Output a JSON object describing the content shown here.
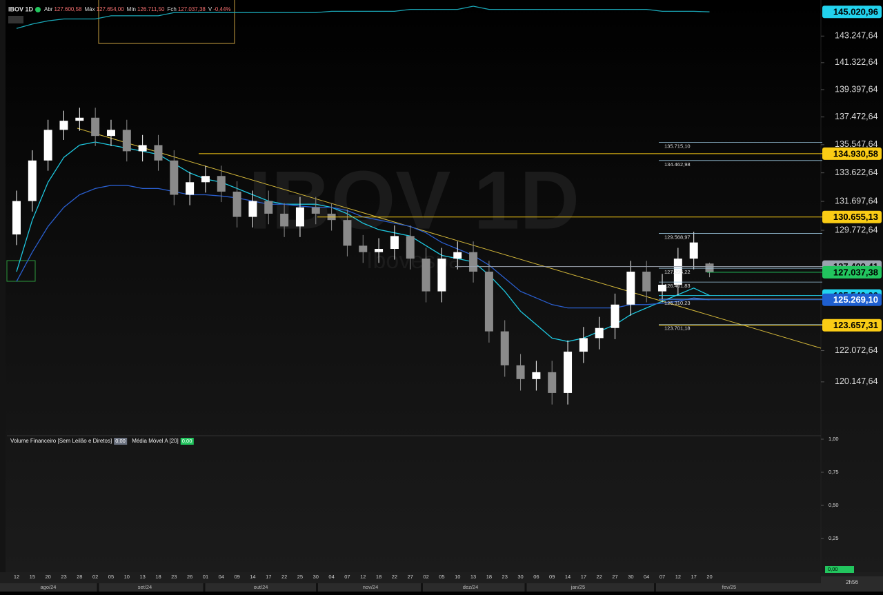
{
  "header": {
    "symbol": "IBOV 1D",
    "fields": [
      {
        "label": "Abr",
        "value": "127.600,58"
      },
      {
        "label": "Máx",
        "value": "127.654,00"
      },
      {
        "label": "Mín",
        "value": "126.711,50"
      },
      {
        "label": "Fch",
        "value": "127.037,38"
      },
      {
        "label": "V",
        "value": "-0,44%"
      }
    ]
  },
  "watermark": {
    "title": "IBOV 1D",
    "subtitle": "Ibovespa"
  },
  "clock": "2h56",
  "chart_data": [
    {
      "type": "candlestick",
      "log_scale": true,
      "ylim": [
        116983,
        145898
      ],
      "categories": [
        "12",
        "15",
        "20",
        "23",
        "28",
        "02",
        "05",
        "10",
        "13",
        "18",
        "23",
        "26",
        "01",
        "04",
        "09",
        "14",
        "17",
        "22",
        "25",
        "30",
        "04",
        "07",
        "12",
        "18",
        "22",
        "27",
        "02",
        "05",
        "10",
        "13",
        "18",
        "23",
        "30",
        "06",
        "09",
        "14",
        "17",
        "22",
        "27",
        "30",
        "04",
        "07",
        "12",
        "17",
        "20"
      ],
      "months": [
        "ago/24",
        "set/24",
        "out/24",
        "nov/24",
        "dez/24",
        "jan/25",
        "fev/25"
      ],
      "up_color": "#ffffff",
      "down_color": "#8a8a8a",
      "open": [
        129500,
        131719,
        134464,
        136576,
        137209,
        137420,
        136153,
        136576,
        135098,
        135520,
        134464,
        132141,
        132986,
        133408,
        132352,
        130663,
        131719,
        130875,
        130030,
        131297,
        130875,
        130452,
        128763,
        128341,
        128552,
        129396,
        127919,
        125807,
        127919,
        128341,
        127074,
        123273,
        121162,
        120317,
        120740,
        119473,
        122007,
        122851,
        123484,
        124963,
        127074,
        125807,
        126230,
        127919,
        127600.58
      ],
      "high": [
        132419,
        135164,
        137276,
        137909,
        138120,
        138120,
        137276,
        137276,
        136220,
        136220,
        135164,
        133686,
        134108,
        134108,
        133052,
        132419,
        132419,
        131575,
        131997,
        131997,
        131575,
        131152,
        129463,
        129252,
        130096,
        130096,
        128619,
        128619,
        129041,
        129041,
        127774,
        123973,
        121862,
        121440,
        121440,
        122707,
        123551,
        124184,
        125663,
        127774,
        127774,
        126930,
        128619,
        129674,
        127654
      ],
      "low": [
        128800,
        131019,
        133764,
        135876,
        136509,
        135453,
        135453,
        134398,
        134398,
        133764,
        131441,
        131441,
        132286,
        131652,
        129963,
        129963,
        130175,
        129330,
        129330,
        130175,
        129752,
        128063,
        127641,
        127641,
        127852,
        127219,
        125107,
        125107,
        127219,
        126374,
        122573,
        120462,
        119617,
        119617,
        118773,
        118773,
        121307,
        122151,
        122784,
        124263,
        125107,
        125107,
        125530,
        127219,
        126711.5
      ],
      "close": [
        131719,
        134464,
        136576,
        137209,
        137420,
        136153,
        136576,
        135098,
        135520,
        134464,
        132141,
        132986,
        133408,
        132352,
        130663,
        131719,
        130875,
        130030,
        131297,
        130875,
        130452,
        128763,
        128341,
        128552,
        129396,
        127919,
        125807,
        127919,
        128341,
        127074,
        123273,
        121162,
        120317,
        120740,
        119473,
        122007,
        122851,
        123484,
        124963,
        127074,
        125807,
        126230,
        127919,
        128974,
        127037.38
      ],
      "lines": [
        {
          "color": "#1ec8e0",
          "values": [
            127074,
            130452,
            132986,
            134675,
            135520,
            135731,
            135520,
            135309,
            135097,
            134886,
            134253,
            133619,
            133197,
            132986,
            132564,
            132141,
            131719,
            131508,
            131508,
            131508,
            131297,
            130874,
            130241,
            129819,
            129608,
            129396,
            128763,
            128130,
            127918,
            127707,
            126863,
            125807,
            124540,
            123695,
            122851,
            122640,
            122851,
            123273,
            123695,
            124329,
            124751,
            125173,
            125596,
            126018,
            125540
          ]
        },
        {
          "color": "#2a5fd0",
          "values": [
            126440,
            128341,
            130030,
            131297,
            132141,
            132564,
            132775,
            132775,
            132564,
            132564,
            132353,
            132141,
            132141,
            132057,
            131930,
            131719,
            131508,
            131508,
            131381,
            131297,
            131297,
            131086,
            130663,
            130452,
            130241,
            130030,
            129608,
            128974,
            128552,
            128130,
            127496,
            126651,
            125807,
            125385,
            124962,
            124751,
            124751,
            124751,
            124751,
            124962,
            124962,
            125047,
            125173,
            125385,
            125269.1
          ]
        },
        {
          "color": "#1aa8b8",
          "values": [
            143801,
            144124,
            144357,
            144497,
            144497,
            144497,
            144731,
            144731,
            144731,
            144731,
            144967,
            144967,
            144967,
            144967,
            144967,
            144967,
            144967,
            144967,
            144967,
            144967,
            145061,
            145061,
            145061,
            145061,
            145061,
            145202,
            145202,
            145202,
            145202,
            145437,
            145202,
            145202,
            145202,
            145202,
            145202,
            145202,
            145202,
            145202,
            145202,
            145202,
            145202,
            145061,
            145061,
            145061,
            145020.96
          ]
        }
      ],
      "yticks": [
        {
          "value": 143247.64,
          "label": "143.247,64"
        },
        {
          "value": 141322.64,
          "label": "141.322,64"
        },
        {
          "value": 139397.64,
          "label": "139.397,64"
        },
        {
          "value": 137472.64,
          "label": "137.472,64"
        },
        {
          "value": 135547.64,
          "label": "135.547,64"
        },
        {
          "value": 133622.64,
          "label": "133.622,64"
        },
        {
          "value": 131697.64,
          "label": "131.697,64"
        },
        {
          "value": 129772.64,
          "label": "129.772,64"
        },
        {
          "value": 122072.64,
          "label": "122.072,64"
        },
        {
          "value": 120147.64,
          "label": "120.147,64"
        }
      ],
      "tags": [
        {
          "value": 145020.96,
          "label": "145.020,96",
          "color": "#22d3ee",
          "text_color": "#000000"
        },
        {
          "value": 134930.58,
          "label": "134.930,58",
          "color": "#facc15",
          "text_color": "#000000"
        },
        {
          "value": 130655.13,
          "label": "130.655,13",
          "color": "#facc15",
          "text_color": "#000000"
        },
        {
          "value": 127400.41,
          "label": "127.400,41",
          "color": "#9ca3af",
          "text_color": "#000000"
        },
        {
          "value": 127037.38,
          "label": "127.037,38",
          "color": "#22c55e",
          "text_color": "#000000"
        },
        {
          "value": 125540,
          "label": "125.540,00",
          "color": "#22d3ee",
          "text_color": "#000000"
        },
        {
          "value": 125269.1,
          "label": "125.269,10",
          "color": "#1e5fd0",
          "text_color": "#ffffff"
        },
        {
          "value": 123657.31,
          "label": "123.657,31",
          "color": "#facc15",
          "text_color": "#000000"
        }
      ],
      "notes": [
        {
          "value": 135715.1,
          "label": "135.715,10"
        },
        {
          "value": 134462.98,
          "label": "134.462,98"
        },
        {
          "value": 129568.97,
          "label": "129.568,97"
        },
        {
          "value": 127295.22,
          "label": "127.295,22"
        },
        {
          "value": 126401.83,
          "label": "126.401,83"
        },
        {
          "value": 125310.23,
          "label": "125.310,23"
        },
        {
          "value": 123701.18,
          "label": "123.701,18"
        }
      ]
    },
    {
      "type": "volume",
      "ylim": [
        0,
        1
      ],
      "readouts": [
        {
          "name": "Volume Financeiro [Sem Leilão e Diretos]",
          "value": 0,
          "label": "0,00",
          "color": "#6b7280"
        },
        {
          "name": "Média Móvel A [20]",
          "value": 0,
          "label": "0,00",
          "color": "#22c55e"
        }
      ],
      "yticks": [
        {
          "value": 1,
          "label": "1,00"
        },
        {
          "value": 0.75,
          "label": "0,75"
        },
        {
          "value": 0.5,
          "label": "0,50"
        },
        {
          "value": 0.25,
          "label": "0,25"
        }
      ],
      "last": {
        "value": 0,
        "label": "0,00",
        "color": "#22c55e"
      }
    }
  ]
}
